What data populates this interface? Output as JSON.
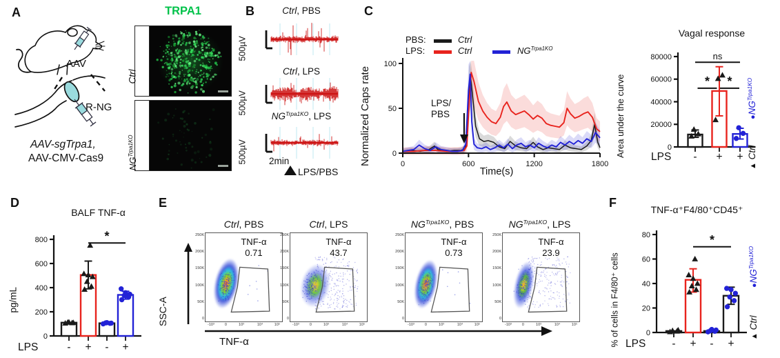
{
  "colors": {
    "red": "#e8231d",
    "blue": "#2222d6",
    "black": "#1a1a1a",
    "green": "#00c24a",
    "trace_red": "#cc1414"
  },
  "legend": {
    "ko_marker": "●",
    "ko_base": "NG",
    "ko_sup": "Trpa1KO",
    "ctrl_marker": "▲",
    "ctrl_label": "Ctrl"
  },
  "panel_a": {
    "label": "A",
    "aav": "AAV",
    "rng": "R-NG",
    "construct_italic": "AAV-sgTrpa1,",
    "construct_plain": "AAV-CMV-Cas9",
    "stain_title": "TRPA1",
    "rows": [
      {
        "label_italic": "Ctrl",
        "label_sup": ""
      },
      {
        "label_italic": "NG",
        "label_sup": "Trpa1KO"
      }
    ]
  },
  "panel_b": {
    "label": "B",
    "time_scale": "2min",
    "stim_label": "LPS/PBS",
    "traces": [
      {
        "title_italic": "Ctrl",
        "title_sup": "",
        "title_rest": ", PBS",
        "scale_label": "500µV",
        "seed": 11,
        "band": 3.4,
        "spikes": 12,
        "spike_amp": 18,
        "burst": false
      },
      {
        "title_italic": "Ctrl",
        "title_sup": "",
        "title_rest": ", LPS",
        "scale_label": "500µV",
        "seed": 23,
        "band": 6.8,
        "spikes": 6,
        "spike_amp": 10,
        "burst": true
      },
      {
        "title_italic": "NG",
        "title_sup": "Trpa1KO",
        "title_rest": ", LPS",
        "scale_label": "500µV",
        "seed": 37,
        "band": 2.9,
        "spikes": 9,
        "spike_amp": 10,
        "burst": false
      }
    ]
  },
  "panel_c": {
    "label": "C"
  },
  "panel_d": {
    "label": "D"
  },
  "panel_e": {
    "label": "E",
    "plots": [
      {
        "name_italic": "Ctrl",
        "name_sup": "",
        "rest": ", PBS",
        "seed": 7,
        "halo": 220,
        "spread": 0,
        "cluster": 0
      },
      {
        "name_italic": "Ctrl",
        "name_sup": "",
        "rest": ", LPS",
        "seed": 8,
        "halo": 170,
        "spread": 290,
        "cluster": 1
      },
      {
        "name_italic": "NG",
        "name_sup": "Trpa1KO",
        "rest": ", PBS",
        "seed": 9,
        "halo": 210,
        "spread": 0,
        "cluster": 2
      },
      {
        "name_italic": "NG",
        "name_sup": "Trpa1KO",
        "rest": ", LPS",
        "seed": 10,
        "halo": 160,
        "spread": 230,
        "cluster": 3
      }
    ]
  },
  "panel_f": {
    "label": "F"
  },
  "chart_data": [
    {
      "id": "caps_rate",
      "type": "line",
      "title": "",
      "xlabel": "Time(s)",
      "ylabel": "Normalized Caps rate",
      "xlim": [
        0,
        1800
      ],
      "ylim": [
        0,
        100
      ],
      "xticks": [
        0,
        600,
        1200,
        1800
      ],
      "yticks": [
        0,
        50,
        100
      ],
      "legend": {
        "pbs": "PBS:",
        "lps": "LPS:",
        "pbs_ctrl": "Ctrl",
        "lps_ctrl": "Ctrl",
        "ko_base": "NG",
        "ko_sup": "Trpa1KO"
      },
      "annotation_line1": "LPS/",
      "annotation_line2": "PBS",
      "annotation_arrow_x": 560,
      "series": [
        {
          "name": "PBS Ctrl",
          "color": "#1a1a1a",
          "width": 1.5,
          "band_base": 2,
          "band_frac": 0.35,
          "x": [
            0,
            80,
            160,
            240,
            290,
            320,
            400,
            470,
            530,
            570,
            590,
            605,
            620,
            640,
            665,
            700,
            740,
            780,
            830,
            880,
            930,
            980,
            1030,
            1080,
            1130,
            1190,
            1230,
            1280,
            1330,
            1380,
            1430,
            1480,
            1530,
            1580,
            1630,
            1680,
            1720,
            1750,
            1780,
            1800
          ],
          "y": [
            2,
            3,
            2,
            4,
            8,
            4,
            2,
            3,
            3,
            5,
            25,
            70,
            85,
            60,
            30,
            16,
            13,
            14,
            12,
            7,
            5,
            13,
            8,
            6,
            5,
            12,
            7,
            4,
            6,
            5,
            4,
            9,
            6,
            5,
            4,
            8,
            14,
            32,
            12,
            6
          ]
        },
        {
          "name": "LPS Ctrl",
          "color": "#e8231d",
          "width": 1.9,
          "band_base": 4,
          "band_frac": 0.3,
          "x": [
            0,
            100,
            200,
            300,
            400,
            500,
            560,
            585,
            605,
            625,
            650,
            690,
            730,
            770,
            810,
            850,
            890,
            920,
            950,
            990,
            1030,
            1070,
            1110,
            1150,
            1190,
            1230,
            1270,
            1310,
            1350,
            1390,
            1430,
            1470,
            1500,
            1530,
            1570,
            1610,
            1650,
            1690,
            1730,
            1770,
            1800
          ],
          "y": [
            2,
            2,
            3,
            3,
            2,
            2,
            3,
            8,
            55,
            90,
            80,
            58,
            47,
            40,
            35,
            33,
            40,
            52,
            57,
            47,
            43,
            45,
            47,
            43,
            38,
            42,
            39,
            33,
            31,
            30,
            29,
            34,
            50,
            44,
            39,
            41,
            44,
            46,
            40,
            27,
            24
          ]
        },
        {
          "name": "LPS NGTrpa1KO",
          "color": "#2222d6",
          "width": 1.9,
          "band_base": 2.5,
          "band_frac": 0.38,
          "x": [
            0,
            50,
            100,
            150,
            200,
            250,
            300,
            350,
            400,
            450,
            500,
            545,
            575,
            600,
            615,
            630,
            650,
            680,
            720,
            760,
            800,
            840,
            880,
            920,
            960,
            1000,
            1040,
            1080,
            1120,
            1160,
            1200,
            1240,
            1280,
            1320,
            1360,
            1400,
            1440,
            1480,
            1520,
            1560,
            1600,
            1640,
            1680,
            1720,
            1760,
            1800
          ],
          "y": [
            2,
            3,
            4,
            9,
            5,
            3,
            7,
            4,
            3,
            2,
            2,
            3,
            10,
            70,
            88,
            35,
            10,
            6,
            5,
            7,
            4,
            6,
            9,
            6,
            10,
            5,
            9,
            11,
            7,
            9,
            6,
            11,
            8,
            6,
            9,
            7,
            12,
            9,
            13,
            10,
            14,
            11,
            16,
            13,
            23,
            17
          ]
        }
      ]
    },
    {
      "id": "vagal_auc",
      "type": "bar",
      "title": "Vagal response",
      "ylabel": "Area under the curve",
      "ylim": [
        0,
        80000
      ],
      "yticks": [
        0,
        20000,
        40000,
        60000,
        80000
      ],
      "x_axis_label": "LPS",
      "categories": [
        "-",
        "+",
        "+"
      ],
      "bars": [
        {
          "value": 11000,
          "color": "#1a1a1a",
          "err_lo": 8500,
          "err_hi": 15000,
          "points": [
            9500,
            11500,
            15500
          ],
          "marker": "triangle",
          "marker_color": "#1a1a1a"
        },
        {
          "value": 49500,
          "color": "#e8231d",
          "err_lo": 27500,
          "err_hi": 71000,
          "points": [
            24000,
            63500,
            60500
          ],
          "marker": "triangle",
          "marker_color": "#1a1a1a"
        },
        {
          "value": 11500,
          "color": "#2222d6",
          "err_lo": 7000,
          "err_hi": 16500,
          "points": [
            7500,
            12000,
            17000
          ],
          "marker": "circle",
          "marker_color": "#2222d6"
        }
      ],
      "sig": [
        {
          "from": 0,
          "to": 1,
          "label": "*",
          "y": 52000,
          "short": true
        },
        {
          "from": 0,
          "to": 2,
          "label": "ns",
          "y": 75000,
          "short": false
        },
        {
          "from": 1,
          "to": 2,
          "label": "*",
          "y": 52000,
          "short": true
        }
      ]
    },
    {
      "id": "balf_tnf",
      "type": "bar",
      "title": "BALF TNF-α",
      "ylabel": "pg/mL",
      "ylim": [
        0,
        800
      ],
      "yticks": [
        0,
        200,
        400,
        600,
        800
      ],
      "x_axis_label": "LPS",
      "categories": [
        "-",
        "+",
        "-",
        "+"
      ],
      "bars": [
        {
          "value": 110,
          "color": "#1a1a1a",
          "points": [
            105,
            108,
            112,
            110,
            114
          ],
          "marker": "triangle",
          "marker_color": "#1a1a1a"
        },
        {
          "value": 505,
          "color": "#e8231d",
          "err_color": "#1a1a1a",
          "err_lo": 390,
          "err_hi": 620,
          "points": [
            385,
            410,
            450,
            490,
            505,
            515,
            750
          ],
          "marker": "triangle",
          "marker_color": "#1a1a1a"
        },
        {
          "value": 105,
          "color": "#1a1a1a",
          "points": [
            100,
            104,
            108,
            106,
            110
          ],
          "marker": "circle",
          "marker_color": "#2222d6"
        },
        {
          "value": 340,
          "color": "#2222d6",
          "err_lo": 305,
          "err_hi": 370,
          "points": [
            300,
            322,
            335,
            345,
            358,
            390
          ],
          "marker": "circle",
          "marker_color": "#2222d6"
        }
      ],
      "sig": [
        {
          "from": 1,
          "to": 3,
          "label": "*",
          "y": 770,
          "short": false
        }
      ]
    },
    {
      "id": "flow_cytometry",
      "type": "scatter",
      "xlabel": "TNF-α",
      "ylabel": "SSC-A",
      "yticks": [
        "250K",
        "200K",
        "150K",
        "100K",
        "50K",
        "0"
      ],
      "xticks": [
        "-10³",
        "0",
        "10³",
        "10⁴",
        "10⁵"
      ],
      "gate_polygon": [
        [
          0.44,
          0.38
        ],
        [
          0.8,
          0.4
        ],
        [
          0.82,
          0.87
        ],
        [
          0.33,
          0.88
        ],
        [
          0.41,
          0.6
        ]
      ],
      "plots": [
        {
          "condition": "Ctrl, PBS",
          "gate": "TNF-α",
          "gate_pct": "0.71"
        },
        {
          "condition": "Ctrl, LPS",
          "gate": "TNF-α",
          "gate_pct": "43.7"
        },
        {
          "condition": "NGTrpa1KO, PBS",
          "gate": "TNF-α",
          "gate_pct": "0.73"
        },
        {
          "condition": "NGTrpa1KO, LPS",
          "gate": "TNF-α",
          "gate_pct": "23.9"
        }
      ]
    },
    {
      "id": "tnf_pct",
      "type": "bar",
      "title": "TNF-α⁺F4/80⁺CD45⁺",
      "ylabel": "% of  cells in F4/80⁺ cells",
      "ylim": [
        0,
        80
      ],
      "yticks": [
        0,
        20,
        40,
        60,
        80
      ],
      "x_axis_label": "LPS",
      "categories": [
        "-",
        "+",
        "-",
        "+"
      ],
      "bars": [
        {
          "value": 1.2,
          "color": "#1a1a1a",
          "points": [
            0.5,
            1,
            1.5,
            2
          ],
          "marker": "triangle",
          "marker_color": "#1a1a1a"
        },
        {
          "value": 43,
          "color": "#e8231d",
          "err_lo": 33,
          "err_hi": 52,
          "points": [
            33,
            35,
            38,
            40,
            44,
            47,
            60
          ],
          "marker": "triangle",
          "marker_color": "#1a1a1a"
        },
        {
          "value": 1.2,
          "color": "#1a1a1a",
          "points": [
            0.5,
            1,
            1.5,
            2,
            2.5
          ],
          "marker": "circle",
          "marker_color": "#2222d6"
        },
        {
          "value": 30,
          "color": "#1a1a1a",
          "err_lo": 23,
          "err_hi": 37,
          "points": [
            21,
            26,
            29,
            32,
            35,
            36
          ],
          "marker": "circle",
          "marker_color": "#2222d6"
        }
      ],
      "sig": [
        {
          "from": 1,
          "to": 3,
          "label": "*",
          "y": 70,
          "short": false
        }
      ]
    }
  ]
}
